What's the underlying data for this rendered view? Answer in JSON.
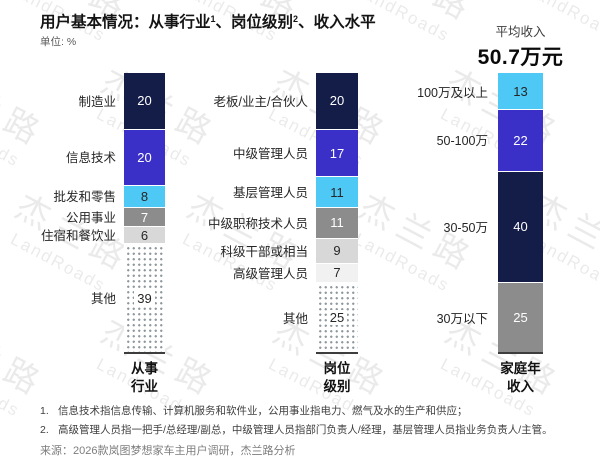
{
  "header": {
    "title": {
      "p1": "用户基本情况：从事行业",
      "sup1": "1",
      "p2": "、岗位级别",
      "sup2": "2",
      "p3": "、收入水平"
    },
    "unit": "单位: %",
    "avg_income_label": "平均收入",
    "avg_income_value": "50.7万元"
  },
  "watermark": {
    "cn": "杰兰路",
    "en": "LandRoads"
  },
  "colors": {
    "navy": "#131d48",
    "blue": "#3a2fc6",
    "cyan": "#4ec9f5",
    "gray": "#8c8c8c",
    "lightgray": "#d8d8d8",
    "verylight": "#f1f1f1"
  },
  "chart_data": [
    {
      "type": "bar",
      "stacked": true,
      "unit": "%",
      "total": 100,
      "axis_label": "从事行业",
      "axis_label_lines": [
        "从事",
        "行业"
      ],
      "segments": [
        {
          "label": "制造业",
          "value": 20,
          "color": "navy"
        },
        {
          "label": "信息技术",
          "value": 20,
          "color": "blue"
        },
        {
          "label": "批发和零售",
          "value": 8,
          "color": "cyan"
        },
        {
          "label": "公用事业",
          "value": 7,
          "color": "gray"
        },
        {
          "label": "住宿和餐饮业",
          "value": 6,
          "color": "lightgray"
        },
        {
          "label": "其他",
          "value": 39,
          "color": "dotted"
        }
      ]
    },
    {
      "type": "bar",
      "stacked": true,
      "unit": "%",
      "total": 100,
      "axis_label": "岗位级别",
      "axis_label_lines": [
        "岗位",
        "级别"
      ],
      "segments": [
        {
          "label": "老板/业主/合伙人",
          "value": 20,
          "color": "navy"
        },
        {
          "label": "中级管理人员",
          "value": 17,
          "color": "blue"
        },
        {
          "label": "基层管理人员",
          "value": 11,
          "color": "cyan"
        },
        {
          "label": "中级职称技术人员",
          "value": 11,
          "color": "gray"
        },
        {
          "label": "科级干部或相当",
          "value": 9,
          "color": "lightgray"
        },
        {
          "label": "高级管理人员",
          "value": 7,
          "color": "verylight"
        },
        {
          "label": "其他",
          "value": 25,
          "color": "dotted"
        }
      ]
    },
    {
      "type": "bar",
      "stacked": true,
      "unit": "%",
      "total": 100,
      "axis_label": "家庭年收入",
      "axis_label_lines": [
        "家庭年",
        "收入"
      ],
      "segments": [
        {
          "label": "100万及以上",
          "value": 13,
          "color": "cyan"
        },
        {
          "label": "50-100万",
          "value": 22,
          "color": "blue"
        },
        {
          "label": "30-50万",
          "value": 40,
          "color": "navy"
        },
        {
          "label": "30万以下",
          "value": 25,
          "color": "gray"
        }
      ]
    }
  ],
  "footnotes": [
    {
      "num": "1.",
      "text": "信息技术指信息传输、计算机服务和软件业，公用事业指电力、燃气及水的生产和供应；"
    },
    {
      "num": "2.",
      "text": "高级管理人员指一把手/总经理/副总，中级管理人员指部门负责人/经理，基层管理人员指业务负责人/主管。"
    }
  ],
  "source": "来源：2026款岚图梦想家车主用户调研，杰兰路分析"
}
